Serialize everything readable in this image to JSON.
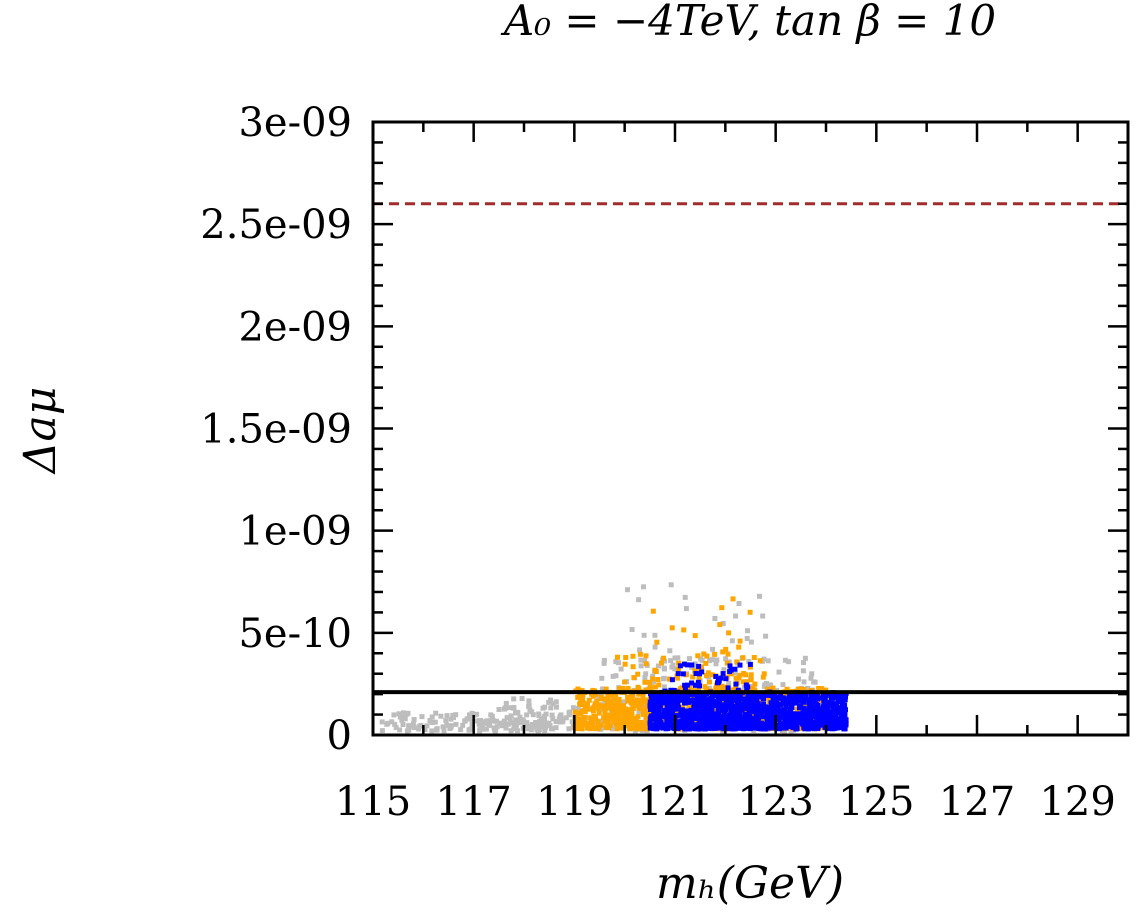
{
  "chart_data": {
    "type": "scatter",
    "title": "A₀ = −4TeV, tan β = 10",
    "xlabel": "mₕ(GeV)",
    "ylabel": "Δaμ",
    "xlim": [
      115,
      130
    ],
    "ylim": [
      0,
      3e-09
    ],
    "x_ticks": [
      115,
      117,
      119,
      121,
      123,
      125,
      127,
      129
    ],
    "x_tick_labels": [
      "115",
      "117",
      "119",
      "121",
      "123",
      "125",
      "127",
      "129"
    ],
    "y_ticks": [
      0,
      5e-10,
      1e-09,
      1.5e-09,
      2e-09,
      2.5e-09,
      3e-09
    ],
    "y_tick_labels": [
      "0",
      "5e-10",
      "1e-09",
      "1.5e-09",
      "2e-09",
      "2.5e-09",
      "3e-09"
    ],
    "grid": false,
    "reference_lines": [
      {
        "y": 2.6e-09,
        "color": "#a52a2a",
        "style": "dashed"
      },
      {
        "y": 2.1e-10,
        "color": "#000000",
        "style": "solid"
      }
    ],
    "series": [
      {
        "color": "#bdbdbd",
        "regions": [
          {
            "x": [
              115.1,
              118.5
            ],
            "y_min": 2e-11,
            "y_max": 1.1e-10,
            "count": 130
          },
          {
            "x": [
              117.5,
              120.0
            ],
            "y_min": 3e-11,
            "y_max": 1.8e-10,
            "count": 120
          },
          {
            "x": [
              119.5,
              123.8
            ],
            "y_min": 2e-11,
            "y_max": 3.8e-10,
            "count": 300
          },
          {
            "x": [
              120.0,
              123.0
            ],
            "y_min": 3.5e-10,
            "y_max": 7.5e-10,
            "count": 30
          }
        ]
      },
      {
        "color": "#ffa500",
        "regions": [
          {
            "x": [
              119.0,
              124.0
            ],
            "y_min": 3e-11,
            "y_max": 2.3e-10,
            "count": 900
          },
          {
            "x": [
              119.8,
              122.8
            ],
            "y_min": 2.2e-10,
            "y_max": 4.2e-10,
            "count": 90
          },
          {
            "x": [
              120.5,
              122.6
            ],
            "y_min": 4.2e-10,
            "y_max": 7.5e-10,
            "count": 12
          }
        ]
      },
      {
        "color": "#0000ff",
        "regions": [
          {
            "x": [
              120.5,
              124.4
            ],
            "y_min": 3e-11,
            "y_max": 2.1e-10,
            "count": 1200
          },
          {
            "x": [
              120.8,
              122.6
            ],
            "y_min": 2e-10,
            "y_max": 3.5e-10,
            "count": 50
          }
        ]
      }
    ]
  }
}
